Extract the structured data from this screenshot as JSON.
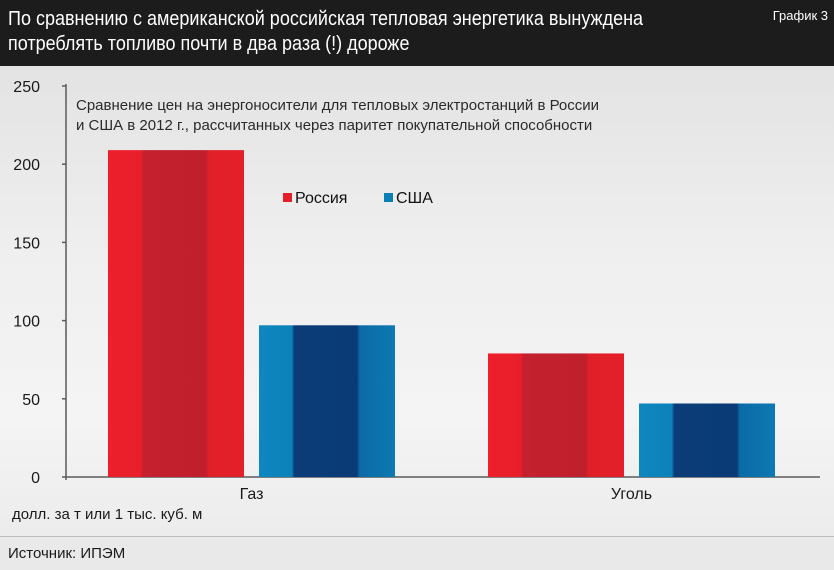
{
  "header": {
    "title": "По сравнению с американской российская тепловая энергетика вынуждена потреблять топливо почти в два раза (!) дороже",
    "label": "График 3"
  },
  "chart_data": {
    "type": "bar",
    "subtitle_line1": "Сравнение цен на энергоносители для тепловых электростанций в России",
    "subtitle_line2": "и США в 2012 г., рассчитанных через паритет покупательной способности",
    "categories": [
      "Газ",
      "Уголь"
    ],
    "series": [
      {
        "name": "Россия",
        "color": "#e41f2a",
        "values": [
          209,
          79
        ]
      },
      {
        "name": "США",
        "color": "#0c7fb6",
        "values": [
          97,
          47
        ]
      }
    ],
    "ylim": [
      0,
      250
    ],
    "yticks": [
      "0",
      "50",
      "100",
      "150",
      "200",
      "250"
    ],
    "unit_label": "долл. за т или 1 тыс. куб. м",
    "grid": false,
    "legend_position": "top-center"
  },
  "footer": {
    "source": "Источник: ИПЭМ"
  }
}
